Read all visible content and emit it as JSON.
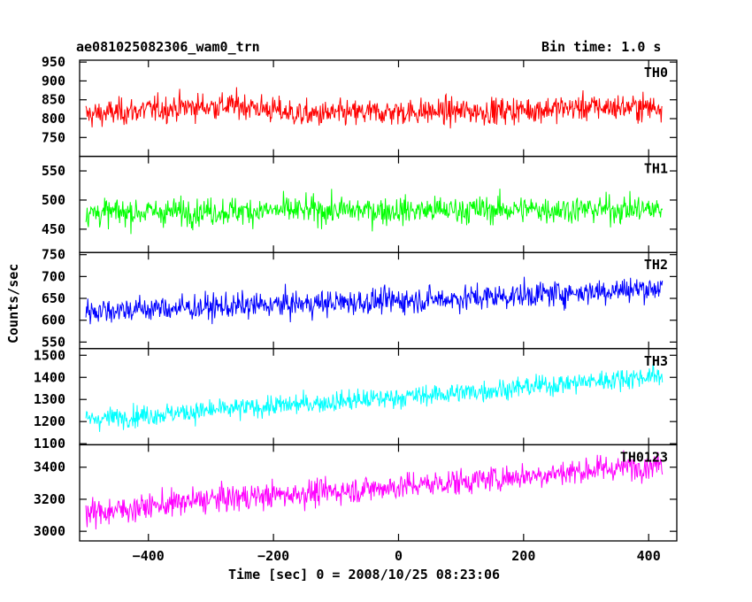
{
  "header": {
    "title": "ae081025082306_wam0_trn",
    "bin_time": "Bin time: 1.0 s"
  },
  "chart_data": {
    "type": "line",
    "x_range": [
      -510,
      445
    ],
    "x_ticks": [
      -400,
      -200,
      0,
      200,
      400
    ],
    "x_tick_labels": [
      "−400",
      "−200",
      "0",
      "200",
      "400"
    ],
    "xlabel": "Time [sec] 0 = 2008/10/25 08:23:06",
    "ylabel": "Counts/sec",
    "panels": [
      {
        "name": "TH0",
        "color": "#ff0000",
        "ylim": [
          700,
          955
        ],
        "yticks": [
          750,
          800,
          850,
          900,
          950
        ],
        "x_start": -500,
        "x_end": 422,
        "trend": [
          [
            -500,
            810
          ],
          [
            -350,
            830
          ],
          [
            -250,
            835
          ],
          [
            -150,
            810
          ],
          [
            0,
            818
          ],
          [
            150,
            820
          ],
          [
            300,
            830
          ],
          [
            422,
            830
          ]
        ],
        "noise": 30
      },
      {
        "name": "TH1",
        "color": "#00ff00",
        "ylim": [
          410,
          575
        ],
        "yticks": [
          450,
          500,
          550
        ],
        "x_start": -500,
        "x_end": 422,
        "trend": [
          [
            -500,
            478
          ],
          [
            -200,
            482
          ],
          [
            0,
            482
          ],
          [
            200,
            484
          ],
          [
            422,
            484
          ]
        ],
        "noise": 20
      },
      {
        "name": "TH2",
        "color": "#0000ff",
        "ylim": [
          535,
          755
        ],
        "yticks": [
          550,
          600,
          650,
          700,
          750
        ],
        "x_start": -500,
        "x_end": 422,
        "trend": [
          [
            -500,
            622
          ],
          [
            -300,
            630
          ],
          [
            -100,
            640
          ],
          [
            100,
            650
          ],
          [
            300,
            665
          ],
          [
            422,
            675
          ]
        ],
        "noise": 25
      },
      {
        "name": "TH3",
        "color": "#00ffff",
        "ylim": [
          1095,
          1530
        ],
        "yticks": [
          1100,
          1200,
          1300,
          1400,
          1500
        ],
        "x_start": -500,
        "x_end": 422,
        "trend": [
          [
            -500,
            1210
          ],
          [
            -300,
            1250
          ],
          [
            -100,
            1290
          ],
          [
            100,
            1330
          ],
          [
            300,
            1380
          ],
          [
            422,
            1410
          ]
        ],
        "noise": 40
      },
      {
        "name": "TH0123",
        "color": "#ff00ff",
        "ylim": [
          2940,
          3540
        ],
        "yticks": [
          3000,
          3200,
          3400
        ],
        "x_start": -500,
        "x_end": 422,
        "trend": [
          [
            -500,
            3110
          ],
          [
            -300,
            3200
          ],
          [
            -100,
            3250
          ],
          [
            100,
            3310
          ],
          [
            300,
            3380
          ],
          [
            422,
            3420
          ]
        ],
        "noise": 70
      }
    ]
  }
}
